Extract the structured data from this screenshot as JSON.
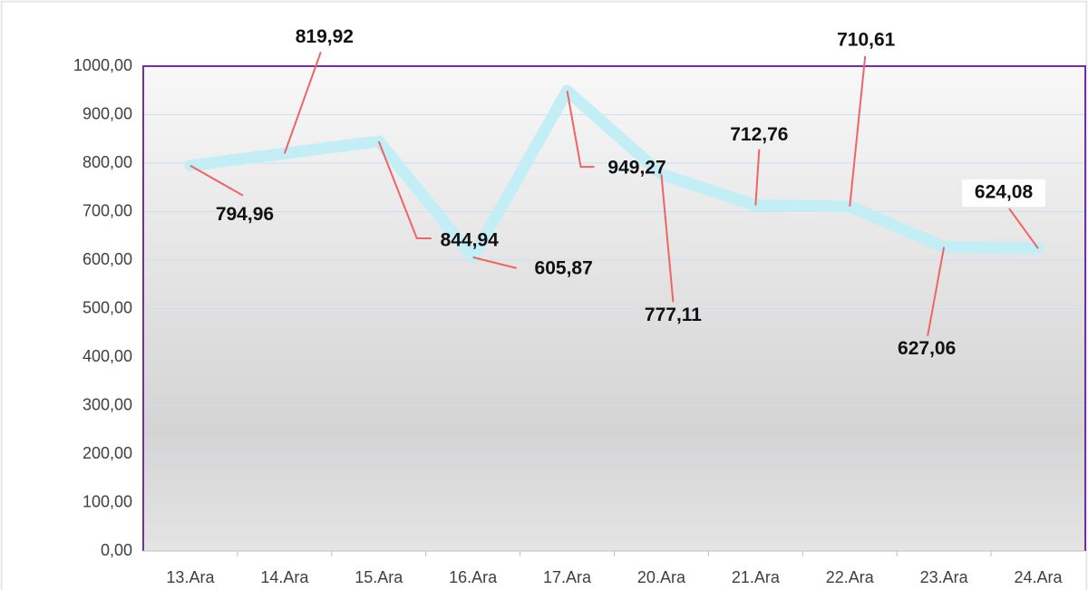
{
  "chart_data": {
    "type": "line",
    "categories": [
      "13.Ara",
      "14.Ara",
      "15.Ara",
      "16.Ara",
      "17.Ara",
      "20.Ara",
      "21.Ara",
      "22.Ara",
      "23.Ara",
      "24.Ara"
    ],
    "series": [
      {
        "color": "#c4eef6",
        "values": [
          794.96,
          819.92,
          844.94,
          605.87,
          949.27,
          777.11,
          712.76,
          710.61,
          627.06,
          624.08
        ],
        "value_labels": [
          "794,96",
          "819,92",
          "844,94",
          "605,87",
          "949,27",
          "777,11",
          "712,76",
          "710,61",
          "627,06",
          "624,08"
        ]
      }
    ],
    "ylim": [
      0,
      1000
    ],
    "yticks": [
      {
        "value": 0,
        "label": "0,00"
      },
      {
        "value": 100,
        "label": "100,00"
      },
      {
        "value": 200,
        "label": "200,00"
      },
      {
        "value": 300,
        "label": "300,00"
      },
      {
        "value": 400,
        "label": "400,00"
      },
      {
        "value": 500,
        "label": "500,00"
      },
      {
        "value": 600,
        "label": "600,00"
      },
      {
        "value": 700,
        "label": "700,00"
      },
      {
        "value": 800,
        "label": "800,00"
      },
      {
        "value": 900,
        "label": "900,00"
      },
      {
        "value": 1000,
        "label": "1000,00"
      }
    ],
    "grid": true
  }
}
